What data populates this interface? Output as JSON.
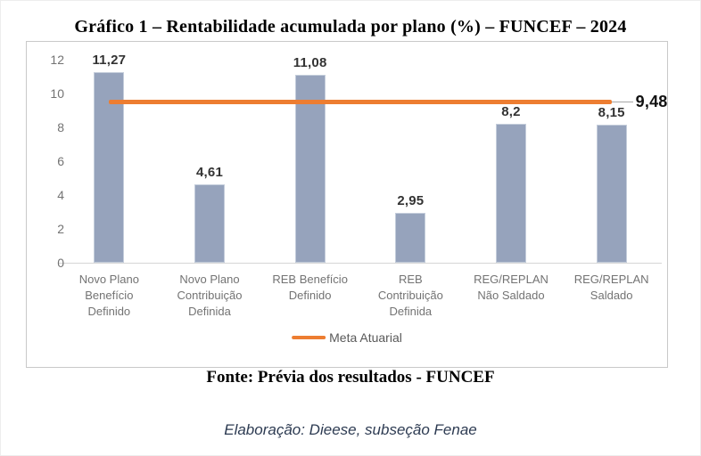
{
  "title": "Gráfico 1 – Rentabilidade acumulada por plano (%) – FUNCEF – 2024",
  "source_line": "Fonte: Prévia dos resultados - FUNCEF",
  "elaboration_line": "Elaboração: Dieese, subseção Fenae",
  "chart_data": {
    "type": "bar",
    "title": "Gráfico 1 – Rentabilidade acumulada por plano (%) – FUNCEF – 2024",
    "categories": [
      "Novo Plano Benefício Definido",
      "Novo Plano Contribuição Definida",
      "REB Benefício Definido",
      "REB Contribuição Definida",
      "REG/REPLAN Não Saldado",
      "REG/REPLAN Saldado"
    ],
    "category_lines": [
      [
        "Novo Plano",
        "Benefício",
        "Definido"
      ],
      [
        "Novo Plano",
        "Contribuição",
        "Definida"
      ],
      [
        "REB Benefício",
        "Definido"
      ],
      [
        "REB",
        "Contribuição",
        "Definida"
      ],
      [
        "REG/REPLAN",
        "Não Saldado"
      ],
      [
        "REG/REPLAN",
        "Saldado"
      ]
    ],
    "values": [
      11.27,
      4.61,
      11.08,
      2.95,
      8.2,
      8.15
    ],
    "value_labels": [
      "11,27",
      "4,61",
      "11,08",
      "2,95",
      "8,2",
      "8,15"
    ],
    "reference_line": {
      "label": "Meta Atuarial",
      "value": 9.48,
      "value_label": "9,48",
      "color": "#ED7D31"
    },
    "legend": [
      {
        "label": "Meta Atuarial",
        "color": "#ED7D31"
      }
    ],
    "legend_position": "bottom-center",
    "xlabel": "",
    "ylabel": "",
    "ylim": [
      0,
      12
    ],
    "yticks": [
      0,
      2,
      4,
      6,
      8,
      10,
      12
    ],
    "grid": false,
    "bar_color": "#96A3BC"
  }
}
